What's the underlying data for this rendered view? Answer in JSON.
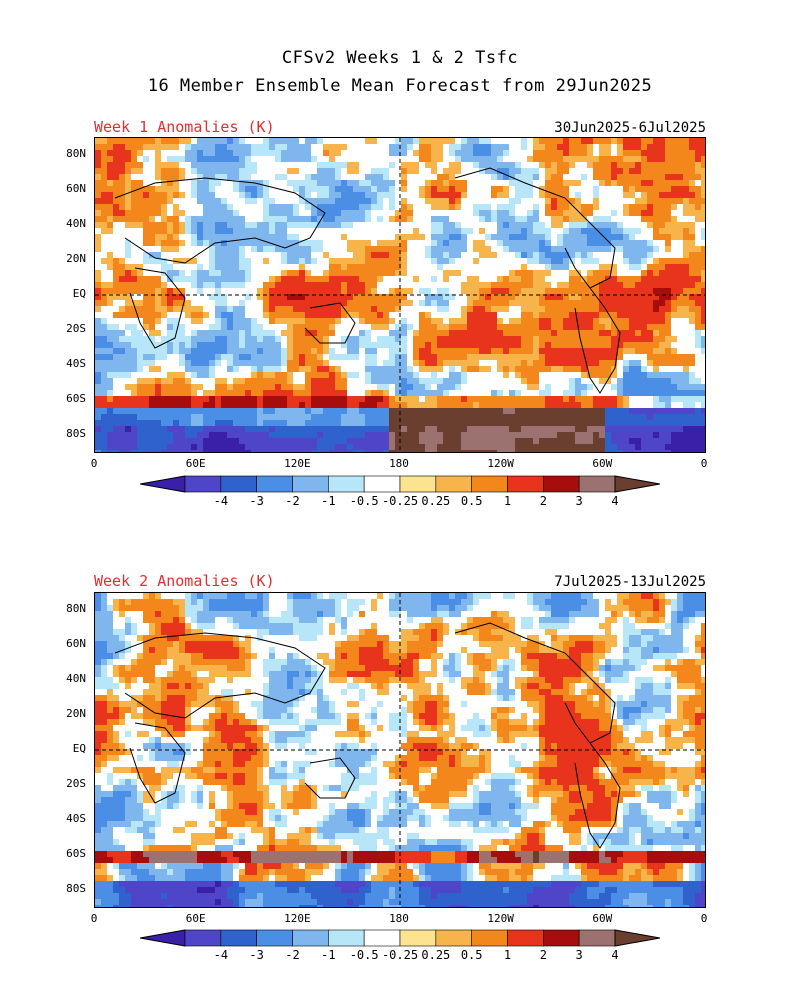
{
  "title_line1": "CFSv2 Weeks 1 & 2 Tsfc",
  "title_line2": "16 Member Ensemble Mean Forecast from 29Jun2025",
  "panels": [
    {
      "label": "Week 1 Anomalies (K)",
      "dates": "30Jun2025-6Jul2025"
    },
    {
      "label": "Week 2 Anomalies (K)",
      "dates": "7Jul2025-13Jul2025"
    }
  ],
  "lat_labels": [
    "80N",
    "60N",
    "40N",
    "20N",
    "EQ",
    "20S",
    "40S",
    "60S",
    "80S"
  ],
  "lon_labels": [
    "0",
    "60E",
    "120E",
    "180",
    "120W",
    "60W",
    "0"
  ],
  "colorbar": {
    "labels": [
      "-4",
      "-3",
      "-2",
      "-1",
      "-0.5",
      "-0.25",
      "0.25",
      "0.5",
      "1",
      "2",
      "3",
      "4"
    ],
    "colors": [
      "#3a1fa8",
      "#4f45c8",
      "#2f62cc",
      "#4a8ee6",
      "#7fb6ee",
      "#b6e6f7",
      "#ffffff",
      "#fbe38f",
      "#f7b44a",
      "#f4871c",
      "#e8341c",
      "#a80d0d",
      "#9b7270",
      "#6b3f2f"
    ]
  },
  "chart_data": {
    "type": "heatmap",
    "variable": "Tsfc anomaly",
    "units": "K",
    "levels": [
      -4,
      -3,
      -2,
      -1,
      -0.5,
      -0.25,
      0.25,
      0.5,
      1,
      2,
      3,
      4
    ],
    "lon_range": [
      0,
      360
    ],
    "lat_range": [
      -90,
      90
    ]
  }
}
